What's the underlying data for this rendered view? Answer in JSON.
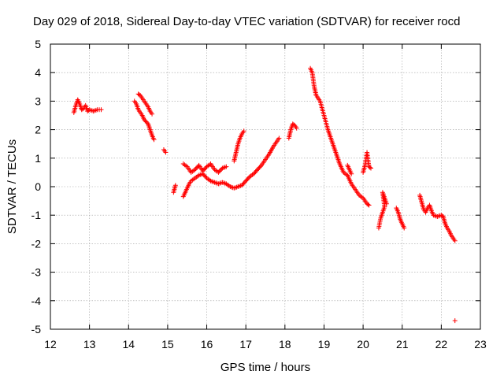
{
  "chart_data": {
    "type": "scatter",
    "title": "Day 029 of 2018, Sidereal Day-to-day VTEC variation (SDTVAR) for receiver rocd",
    "xlabel": "GPS time / hours",
    "ylabel": "SDTVAR / TECUs",
    "xlim": [
      12,
      23
    ],
    "ylim": [
      -5,
      5
    ],
    "xticks": [
      12,
      13,
      14,
      15,
      16,
      17,
      18,
      19,
      20,
      21,
      22,
      23
    ],
    "yticks": [
      -5,
      -4,
      -3,
      -2,
      -1,
      0,
      1,
      2,
      3,
      4,
      5
    ],
    "xtick_labels": [
      "12",
      "13",
      "14",
      "15",
      "16",
      "17",
      "18",
      "19",
      "20",
      "21",
      "22",
      "23"
    ],
    "ytick_labels": [
      "-5",
      "-4",
      "-3",
      "-2",
      "-1",
      "0",
      "1",
      "2",
      "3",
      "4",
      "5"
    ],
    "grid": true,
    "marker": "+",
    "color": "#ff0000",
    "series": [
      {
        "name": "rocd",
        "segments": [
          [
            [
              12.6,
              2.6
            ],
            [
              12.65,
              2.85
            ],
            [
              12.7,
              3.05
            ],
            [
              12.75,
              2.9
            ],
            [
              12.8,
              2.7
            ],
            [
              12.85,
              2.75
            ],
            [
              12.9,
              2.85
            ],
            [
              12.95,
              2.65
            ],
            [
              13.0,
              2.7
            ],
            [
              13.1,
              2.65
            ],
            [
              13.2,
              2.7
            ],
            [
              13.3,
              2.7
            ]
          ],
          [
            [
              14.15,
              3.0
            ],
            [
              14.2,
              2.9
            ],
            [
              14.25,
              2.7
            ],
            [
              14.3,
              2.6
            ],
            [
              14.35,
              2.5
            ],
            [
              14.4,
              2.35
            ],
            [
              14.5,
              2.2
            ],
            [
              14.55,
              2.0
            ],
            [
              14.6,
              1.8
            ],
            [
              14.65,
              1.65
            ]
          ],
          [
            [
              14.25,
              3.25
            ],
            [
              14.3,
              3.2
            ],
            [
              14.35,
              3.1
            ],
            [
              14.4,
              3.0
            ],
            [
              14.45,
              2.9
            ],
            [
              14.5,
              2.8
            ],
            [
              14.55,
              2.65
            ],
            [
              14.6,
              2.55
            ]
          ],
          [
            [
              14.9,
              1.3
            ],
            [
              14.95,
              1.2
            ]
          ],
          [
            [
              15.15,
              -0.2
            ],
            [
              15.2,
              0.05
            ]
          ],
          [
            [
              15.4,
              -0.35
            ],
            [
              15.45,
              -0.2
            ],
            [
              15.5,
              -0.05
            ],
            [
              15.55,
              0.1
            ],
            [
              15.6,
              0.2
            ],
            [
              15.7,
              0.3
            ],
            [
              15.8,
              0.4
            ],
            [
              15.9,
              0.45
            ],
            [
              16.0,
              0.3
            ],
            [
              16.1,
              0.2
            ],
            [
              16.2,
              0.15
            ],
            [
              16.3,
              0.1
            ],
            [
              16.4,
              0.15
            ],
            [
              16.5,
              0.1
            ],
            [
              16.6,
              0.0
            ],
            [
              16.7,
              -0.05
            ],
            [
              16.8,
              0.0
            ],
            [
              16.9,
              0.05
            ],
            [
              17.0,
              0.2
            ],
            [
              17.1,
              0.35
            ],
            [
              17.2,
              0.45
            ],
            [
              17.3,
              0.6
            ],
            [
              17.4,
              0.75
            ],
            [
              17.5,
              0.95
            ],
            [
              17.6,
              1.15
            ],
            [
              17.7,
              1.4
            ],
            [
              17.8,
              1.6
            ],
            [
              17.85,
              1.7
            ]
          ],
          [
            [
              15.4,
              0.8
            ],
            [
              15.5,
              0.7
            ],
            [
              15.6,
              0.5
            ],
            [
              15.7,
              0.6
            ],
            [
              15.8,
              0.75
            ],
            [
              15.9,
              0.55
            ],
            [
              16.0,
              0.7
            ],
            [
              16.1,
              0.8
            ],
            [
              16.2,
              0.6
            ],
            [
              16.3,
              0.5
            ],
            [
              16.4,
              0.65
            ],
            [
              16.5,
              0.7
            ]
          ],
          [
            [
              16.7,
              0.9
            ],
            [
              16.75,
              1.2
            ],
            [
              16.8,
              1.5
            ],
            [
              16.85,
              1.7
            ],
            [
              16.9,
              1.85
            ],
            [
              16.95,
              1.95
            ]
          ],
          [
            [
              18.1,
              1.7
            ],
            [
              18.15,
              2.0
            ],
            [
              18.2,
              2.2
            ],
            [
              18.25,
              2.15
            ],
            [
              18.3,
              2.05
            ]
          ],
          [
            [
              18.65,
              4.15
            ],
            [
              18.7,
              4.0
            ],
            [
              18.75,
              3.5
            ],
            [
              18.8,
              3.2
            ],
            [
              18.9,
              3.0
            ],
            [
              19.0,
              2.5
            ],
            [
              19.1,
              2.0
            ],
            [
              19.2,
              1.6
            ],
            [
              19.3,
              1.2
            ],
            [
              19.4,
              0.8
            ],
            [
              19.5,
              0.5
            ],
            [
              19.6,
              0.4
            ],
            [
              19.7,
              0.1
            ],
            [
              19.8,
              -0.1
            ],
            [
              19.9,
              -0.3
            ],
            [
              20.0,
              -0.4
            ],
            [
              20.05,
              -0.5
            ],
            [
              20.1,
              -0.6
            ],
            [
              20.15,
              -0.65
            ]
          ],
          [
            [
              19.6,
              0.75
            ],
            [
              19.65,
              0.6
            ],
            [
              19.7,
              0.45
            ]
          ],
          [
            [
              20.0,
              0.5
            ],
            [
              20.05,
              0.75
            ],
            [
              20.1,
              1.2
            ],
            [
              20.15,
              0.7
            ],
            [
              20.2,
              0.65
            ]
          ],
          [
            [
              20.4,
              -1.45
            ],
            [
              20.45,
              -1.1
            ],
            [
              20.5,
              -0.9
            ],
            [
              20.55,
              -0.7
            ],
            [
              20.5,
              -0.2
            ],
            [
              20.55,
              -0.4
            ],
            [
              20.6,
              -0.6
            ]
          ],
          [
            [
              20.85,
              -0.75
            ],
            [
              20.9,
              -0.9
            ],
            [
              20.95,
              -1.15
            ],
            [
              21.0,
              -1.3
            ],
            [
              21.05,
              -1.45
            ]
          ],
          [
            [
              21.45,
              -0.3
            ],
            [
              21.5,
              -0.55
            ],
            [
              21.55,
              -0.8
            ],
            [
              21.6,
              -0.9
            ],
            [
              21.65,
              -0.75
            ],
            [
              21.7,
              -0.65
            ],
            [
              21.75,
              -0.85
            ],
            [
              21.8,
              -1.0
            ],
            [
              21.9,
              -1.05
            ],
            [
              22.0,
              -1.0
            ],
            [
              22.05,
              -1.05
            ],
            [
              22.1,
              -1.3
            ],
            [
              22.15,
              -1.45
            ],
            [
              22.2,
              -1.55
            ],
            [
              22.25,
              -1.7
            ],
            [
              22.3,
              -1.8
            ],
            [
              22.35,
              -1.9
            ]
          ],
          [
            [
              22.35,
              -4.7
            ]
          ]
        ]
      }
    ]
  }
}
